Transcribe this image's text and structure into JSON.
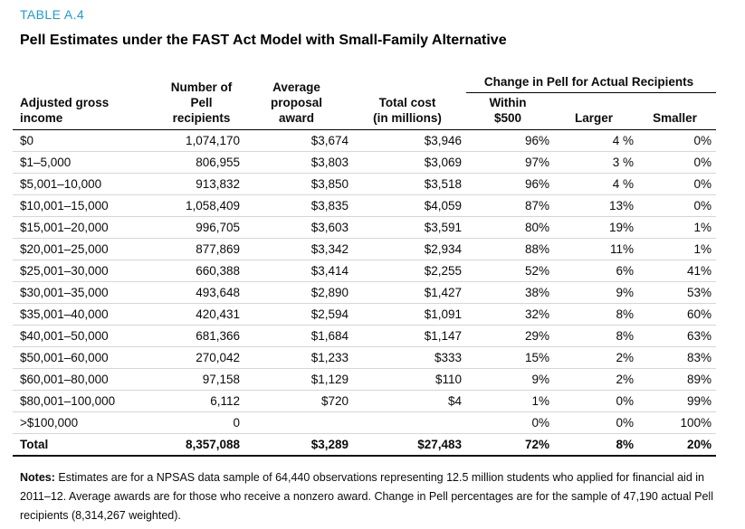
{
  "colors": {
    "accent": "#1e9bcd",
    "rule_dark": "#000000",
    "rule_light": "#d6d6d6"
  },
  "header": {
    "table_label": "TABLE A.4",
    "title": "Pell Estimates under the FAST Act Model with Small-Family Alternative"
  },
  "table": {
    "span_header": "Change in Pell for Actual Recipients",
    "col_headers": {
      "income": "Adjusted gross\nincome",
      "recipients": "Number of\nPell\nrecipients",
      "award": "Average\nproposal\naward",
      "cost": "Total cost\n(in millions)",
      "within": "Within\n$500",
      "larger": "Larger",
      "smaller": "Smaller"
    },
    "rows": [
      [
        "$0",
        "1,074,170",
        "$3,674",
        "$3,946",
        "96%",
        "4 %",
        "0%"
      ],
      [
        "$1–5,000",
        "806,955",
        "$3,803",
        "$3,069",
        "97%",
        "3 %",
        "0%"
      ],
      [
        "$5,001–10,000",
        "913,832",
        "$3,850",
        "$3,518",
        "96%",
        "4 %",
        "0%"
      ],
      [
        "$10,001–15,000",
        "1,058,409",
        "$3,835",
        "$4,059",
        "87%",
        "13%",
        "0%"
      ],
      [
        "$15,001–20,000",
        "996,705",
        "$3,603",
        "$3,591",
        "80%",
        "19%",
        "1%"
      ],
      [
        "$20,001–25,000",
        "877,869",
        "$3,342",
        "$2,934",
        "88%",
        "11%",
        "1%"
      ],
      [
        "$25,001–30,000",
        "660,388",
        "$3,414",
        "$2,255",
        "52%",
        "6%",
        "41%"
      ],
      [
        "$30,001–35,000",
        "493,648",
        "$2,890",
        "$1,427",
        "38%",
        "9%",
        "53%"
      ],
      [
        "$35,001–40,000",
        "420,431",
        "$2,594",
        "$1,091",
        "32%",
        "8%",
        "60%"
      ],
      [
        "$40,001–50,000",
        "681,366",
        "$1,684",
        "$1,147",
        "29%",
        "8%",
        "63%"
      ],
      [
        "$50,001–60,000",
        "270,042",
        "$1,233",
        "$333",
        "15%",
        "2%",
        "83%"
      ],
      [
        "$60,001–80,000",
        "97,158",
        "$1,129",
        "$110",
        "9%",
        "2%",
        "89%"
      ],
      [
        "$80,001–100,000",
        "6,112",
        "$720",
        "$4",
        "1%",
        "0%",
        "99%"
      ],
      [
        ">$100,000",
        "0",
        "",
        "",
        "0%",
        "0%",
        "100%"
      ]
    ],
    "total_row": [
      "Total",
      "8,357,088",
      "$3,289",
      "$27,483",
      "72%",
      "8%",
      "20%"
    ]
  },
  "notes": {
    "label": "Notes:",
    "text": "Estimates are for a NPSAS data sample of 64,440 observations representing 12.5 million students who applied for financial aid in 2011–12. Average awards are for those who receive a nonzero award. Change in Pell percentages are for the sample of 47,190 actual Pell recipients (8,314,267 weighted)."
  }
}
